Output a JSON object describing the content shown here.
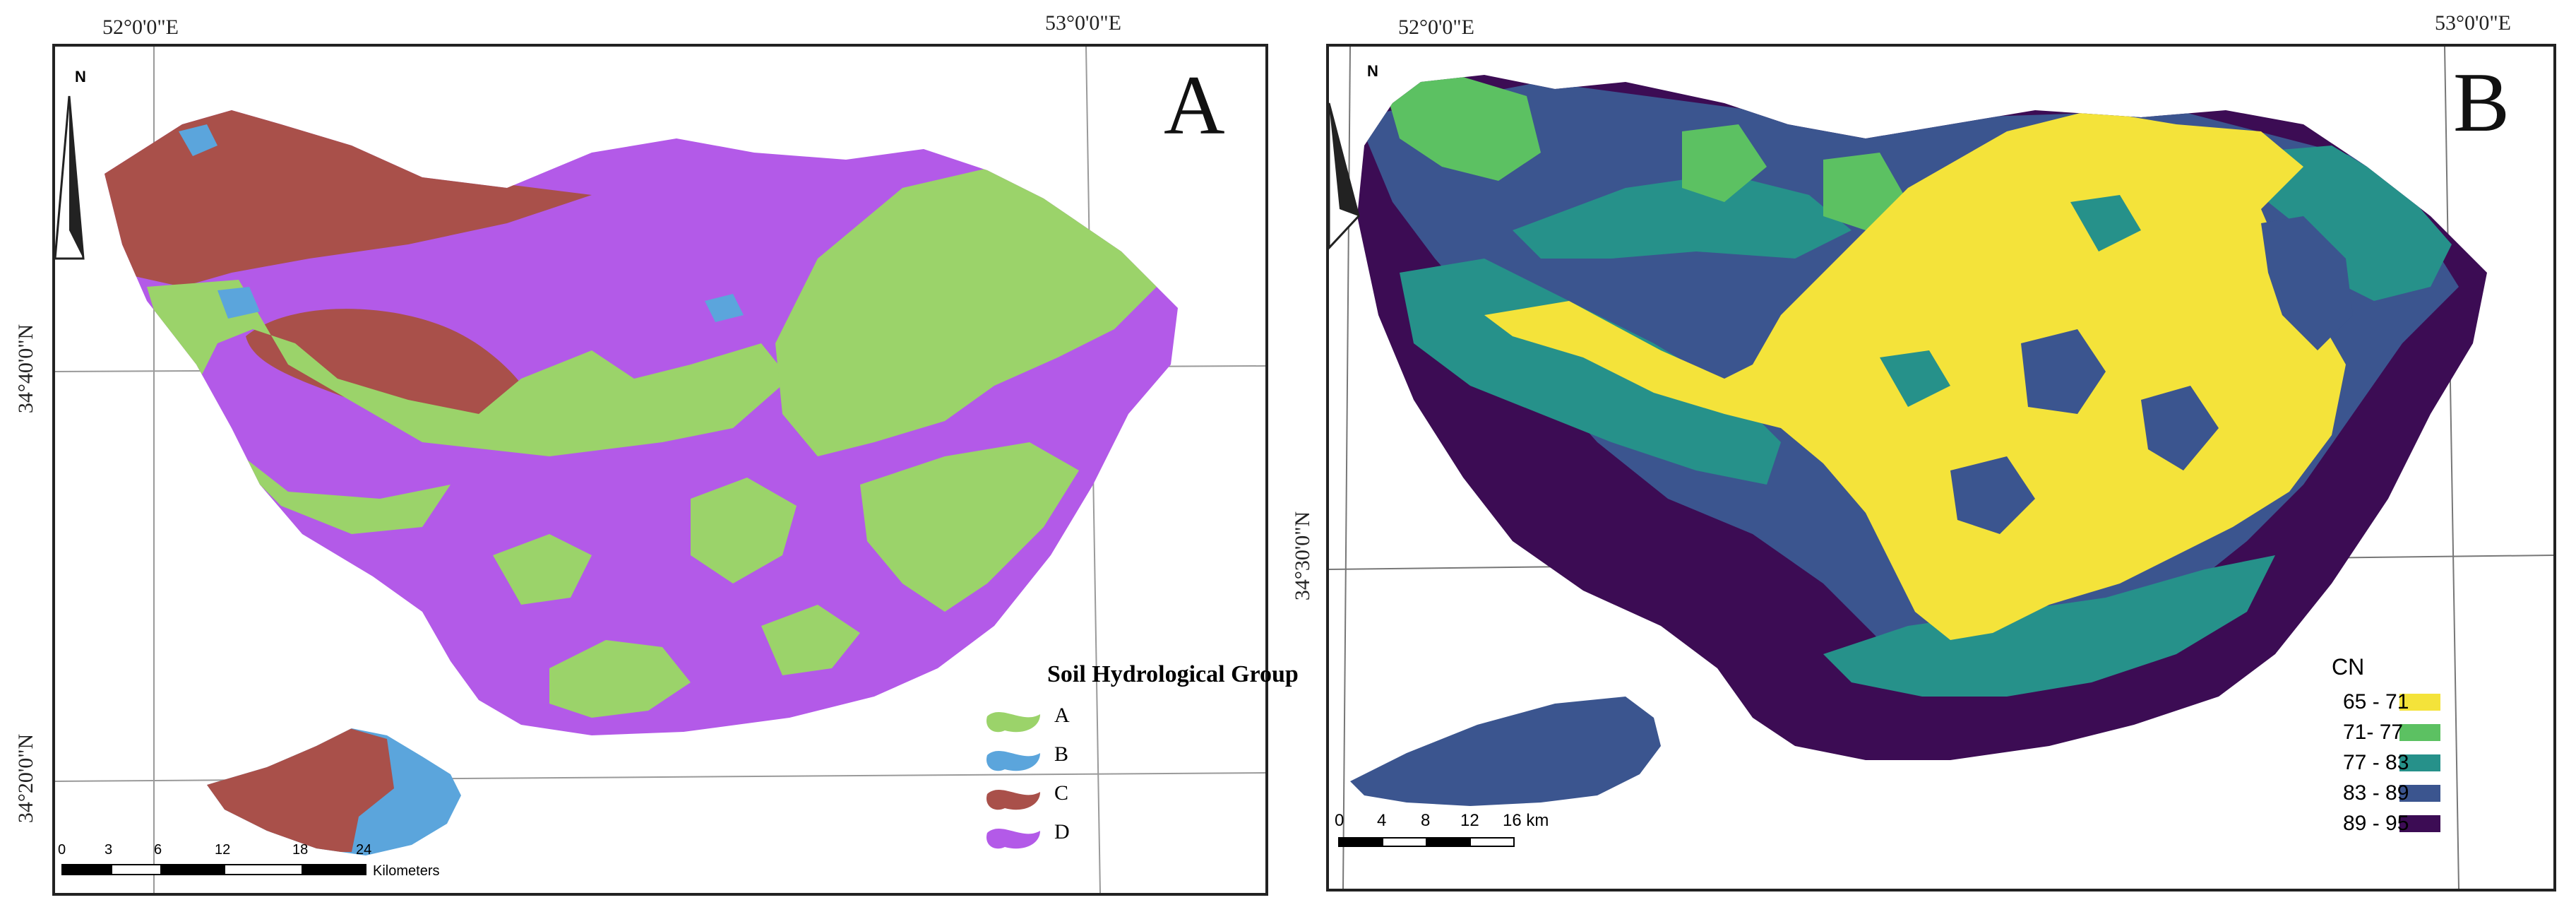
{
  "panel_a": {
    "letter": "A",
    "lon_labels": [
      "52°0'0\"E",
      "53°0'0\"E"
    ],
    "lat_labels": [
      "34°40'0\"N",
      "34°20'0\"N"
    ],
    "north": "N",
    "legend": {
      "title": "Soil Hydrological Group",
      "items": [
        {
          "label": "A",
          "color": "#9bd36a"
        },
        {
          "label": "B",
          "color": "#5ba5dc"
        },
        {
          "label": "C",
          "color": "#a9504a"
        },
        {
          "label": "D",
          "color": "#b35ae8"
        }
      ]
    },
    "scale_ticks": [
      "0",
      "3",
      "6",
      "12",
      "18",
      "24"
    ],
    "scale_unit": "Kilometers"
  },
  "panel_b": {
    "letter": "B",
    "lon_labels": [
      "52°0'0\"E",
      "53°0'0\"E"
    ],
    "lat_labels": [
      "34°30'0\"N"
    ],
    "north": "N",
    "legend": {
      "title": "CN",
      "items": [
        {
          "label": "65 - 71",
          "color": "#f4e33a"
        },
        {
          "label": "71- 77",
          "color": "#5cc162"
        },
        {
          "label": "77 - 83",
          "color": "#26918a"
        },
        {
          "label": "83 - 89",
          "color": "#3b558f"
        },
        {
          "label": "89 - 95",
          "color": "#3c0c54"
        }
      ]
    },
    "scale_ticks": [
      "0",
      "4",
      "8",
      "12",
      "16 km"
    ]
  }
}
